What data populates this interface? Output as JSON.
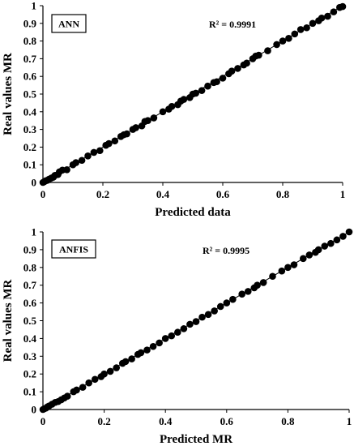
{
  "chart_data": [
    {
      "type": "scatter",
      "label": "ANN",
      "r_squared_text": "R² = 0.9991",
      "xlabel": "Predicted data",
      "ylabel": "Real values MR",
      "xlim": [
        0,
        1
      ],
      "ylim": [
        0,
        1
      ],
      "xticks": [
        "0",
        "0.2",
        "0.4",
        "0.6",
        "0.8",
        "1"
      ],
      "yticks": [
        "0",
        "0.1",
        "0.2",
        "0.3",
        "0.4",
        "0.5",
        "0.6",
        "0.7",
        "0.8",
        "0.9",
        "1"
      ],
      "trendline": [
        [
          0,
          0
        ],
        [
          1,
          1
        ]
      ],
      "points": [
        [
          0.0,
          0.0
        ],
        [
          0.005,
          0.005
        ],
        [
          0.01,
          0.01
        ],
        [
          0.015,
          0.012
        ],
        [
          0.02,
          0.018
        ],
        [
          0.028,
          0.025
        ],
        [
          0.035,
          0.03
        ],
        [
          0.04,
          0.04
        ],
        [
          0.05,
          0.045
        ],
        [
          0.055,
          0.06
        ],
        [
          0.065,
          0.07
        ],
        [
          0.08,
          0.072
        ],
        [
          0.1,
          0.1
        ],
        [
          0.11,
          0.112
        ],
        [
          0.13,
          0.125
        ],
        [
          0.15,
          0.15
        ],
        [
          0.17,
          0.17
        ],
        [
          0.19,
          0.18
        ],
        [
          0.21,
          0.21
        ],
        [
          0.22,
          0.22
        ],
        [
          0.24,
          0.235
        ],
        [
          0.26,
          0.26
        ],
        [
          0.27,
          0.27
        ],
        [
          0.28,
          0.275
        ],
        [
          0.3,
          0.3
        ],
        [
          0.31,
          0.31
        ],
        [
          0.33,
          0.32
        ],
        [
          0.34,
          0.345
        ],
        [
          0.35,
          0.35
        ],
        [
          0.37,
          0.365
        ],
        [
          0.4,
          0.4
        ],
        [
          0.42,
          0.415
        ],
        [
          0.43,
          0.43
        ],
        [
          0.45,
          0.44
        ],
        [
          0.46,
          0.46
        ],
        [
          0.47,
          0.47
        ],
        [
          0.49,
          0.48
        ],
        [
          0.5,
          0.5
        ],
        [
          0.51,
          0.505
        ],
        [
          0.53,
          0.52
        ],
        [
          0.55,
          0.545
        ],
        [
          0.57,
          0.565
        ],
        [
          0.58,
          0.57
        ],
        [
          0.6,
          0.59
        ],
        [
          0.62,
          0.615
        ],
        [
          0.63,
          0.63
        ],
        [
          0.65,
          0.645
        ],
        [
          0.67,
          0.665
        ],
        [
          0.68,
          0.675
        ],
        [
          0.7,
          0.7
        ],
        [
          0.71,
          0.715
        ],
        [
          0.72,
          0.72
        ],
        [
          0.75,
          0.745
        ],
        [
          0.78,
          0.78
        ],
        [
          0.8,
          0.8
        ],
        [
          0.82,
          0.815
        ],
        [
          0.84,
          0.84
        ],
        [
          0.86,
          0.865
        ],
        [
          0.88,
          0.875
        ],
        [
          0.9,
          0.9
        ],
        [
          0.92,
          0.915
        ],
        [
          0.93,
          0.93
        ],
        [
          0.95,
          0.94
        ],
        [
          0.97,
          0.965
        ],
        [
          0.99,
          0.99
        ],
        [
          1.0,
          0.995
        ]
      ]
    },
    {
      "type": "scatter",
      "label": "ANFIS",
      "r_squared_text": "R² = 0.9995",
      "xlabel": "Predicted MR",
      "ylabel": "Real values MR",
      "xlim": [
        0,
        1
      ],
      "ylim": [
        0,
        1
      ],
      "xticks": [
        "0",
        "0.2",
        "0.4",
        "0.6",
        "0.8",
        "1"
      ],
      "yticks": [
        "0",
        "0.1",
        "0.2",
        "0.3",
        "0.4",
        "0.5",
        "0.6",
        "0.7",
        "0.8",
        "0.9",
        "1"
      ],
      "trendline": [
        [
          0,
          0
        ],
        [
          1,
          1
        ]
      ],
      "points": [
        [
          0.0,
          0.0
        ],
        [
          0.005,
          0.005
        ],
        [
          0.01,
          0.008
        ],
        [
          0.015,
          0.015
        ],
        [
          0.02,
          0.02
        ],
        [
          0.03,
          0.03
        ],
        [
          0.04,
          0.04
        ],
        [
          0.05,
          0.045
        ],
        [
          0.06,
          0.055
        ],
        [
          0.07,
          0.065
        ],
        [
          0.08,
          0.075
        ],
        [
          0.1,
          0.1
        ],
        [
          0.11,
          0.11
        ],
        [
          0.13,
          0.125
        ],
        [
          0.15,
          0.15
        ],
        [
          0.17,
          0.17
        ],
        [
          0.19,
          0.185
        ],
        [
          0.2,
          0.2
        ],
        [
          0.22,
          0.215
        ],
        [
          0.24,
          0.235
        ],
        [
          0.26,
          0.26
        ],
        [
          0.27,
          0.27
        ],
        [
          0.29,
          0.285
        ],
        [
          0.31,
          0.31
        ],
        [
          0.32,
          0.32
        ],
        [
          0.34,
          0.335
        ],
        [
          0.36,
          0.355
        ],
        [
          0.38,
          0.375
        ],
        [
          0.4,
          0.4
        ],
        [
          0.42,
          0.415
        ],
        [
          0.44,
          0.435
        ],
        [
          0.46,
          0.455
        ],
        [
          0.48,
          0.48
        ],
        [
          0.5,
          0.495
        ],
        [
          0.52,
          0.52
        ],
        [
          0.54,
          0.535
        ],
        [
          0.56,
          0.555
        ],
        [
          0.58,
          0.58
        ],
        [
          0.6,
          0.6
        ],
        [
          0.62,
          0.62
        ],
        [
          0.65,
          0.65
        ],
        [
          0.67,
          0.665
        ],
        [
          0.69,
          0.685
        ],
        [
          0.7,
          0.7
        ],
        [
          0.72,
          0.715
        ],
        [
          0.75,
          0.75
        ],
        [
          0.78,
          0.78
        ],
        [
          0.8,
          0.8
        ],
        [
          0.82,
          0.815
        ],
        [
          0.85,
          0.85
        ],
        [
          0.87,
          0.87
        ],
        [
          0.89,
          0.885
        ],
        [
          0.9,
          0.9
        ],
        [
          0.92,
          0.92
        ],
        [
          0.94,
          0.935
        ],
        [
          0.96,
          0.955
        ],
        [
          0.98,
          0.975
        ],
        [
          1.0,
          1.0
        ]
      ]
    }
  ]
}
